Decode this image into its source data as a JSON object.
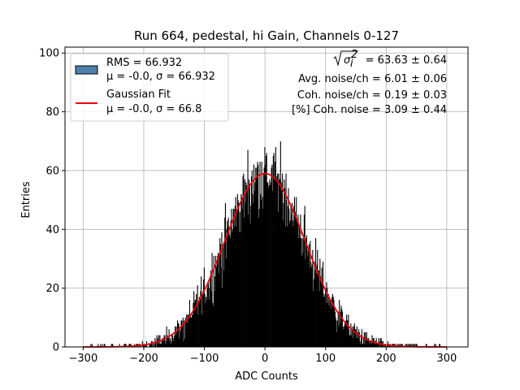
{
  "chart_data": {
    "type": "bar",
    "title": "Run 664, pedestal, hi Gain, Channels 0-127",
    "xlabel": "ADC Counts",
    "ylabel": "Entries",
    "xlim": [
      -330,
      335
    ],
    "ylim": [
      0,
      102
    ],
    "xticks": [
      -300,
      -200,
      -100,
      0,
      100,
      200,
      300
    ],
    "yticks": [
      0,
      20,
      40,
      60,
      80,
      100
    ],
    "xtick_labels": [
      "−300",
      "−200",
      "−100",
      "0",
      "100",
      "200",
      "300"
    ],
    "ytick_labels": [
      "0",
      "20",
      "40",
      "60",
      "80",
      "100"
    ],
    "grid": true,
    "legend_placement": "top-left",
    "series": [
      {
        "name": "RMS = 66.932",
        "sub": "μ = -0.0, σ = 66.932",
        "kind": "histogram",
        "color": "#000000",
        "legend_color": "#4e7fad",
        "range": [
          -300,
          300
        ],
        "mu": 0.0,
        "sigma": 66.932,
        "peak": 59
      },
      {
        "name": "Gaussian Fit",
        "sub": "μ = -0.0, σ = 66.8",
        "kind": "line",
        "color": "#e8000b",
        "mu": 0.0,
        "sigma": 66.8,
        "amplitude": 59
      }
    ],
    "annotations": {
      "sigma_sum_value": "= 63.63 ± 0.64",
      "avg_noise": "Avg. noise/ch = 6.01 ± 0.06",
      "coh_noise": "Coh. noise/ch = 0.19 ± 0.03",
      "coh_noise_pct": "[%] Coh. noise = 3.09 ± 0.44"
    }
  }
}
